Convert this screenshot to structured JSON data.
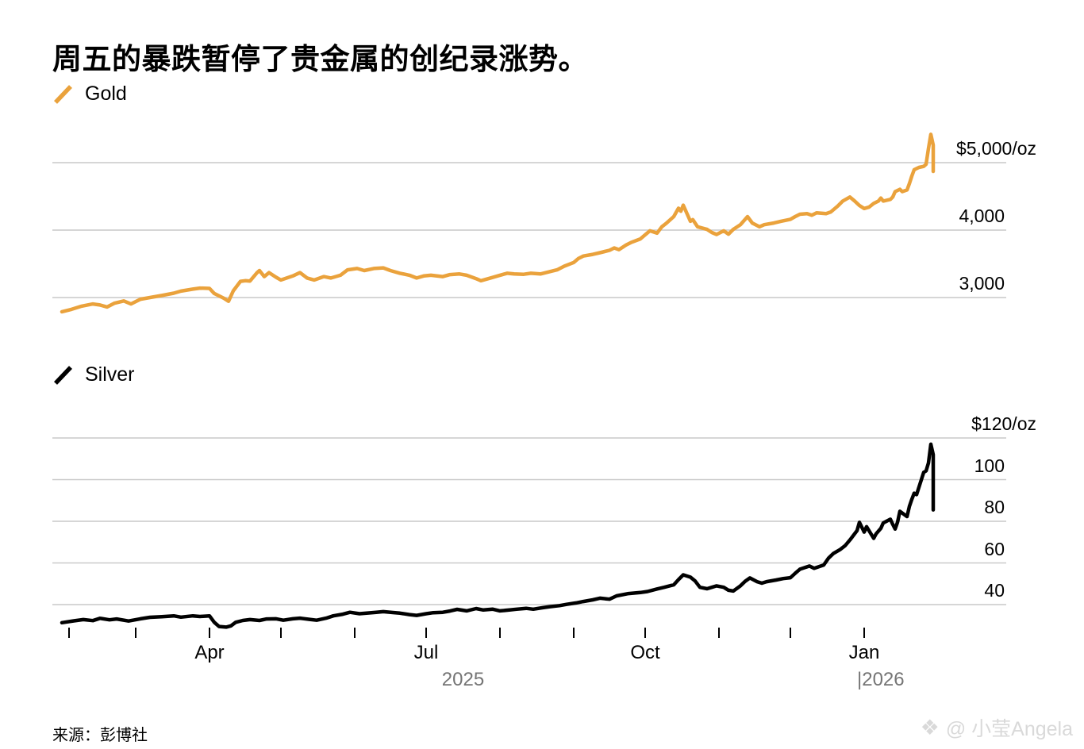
{
  "title": "周五的暴跌暂停了贵金属的创纪录涨势。",
  "source": "来源：彭博社",
  "watermark": {
    "logo": "❖",
    "text": "@ 小莹Angela"
  },
  "colors": {
    "gold": "#EAA23C",
    "silver": "#000000",
    "gridline": "#c9c9c9",
    "year_text": "#757575",
    "watermark_text": "#d9d9d9"
  },
  "x_axis": {
    "range": [
      "2025-01-29",
      "2026-01-30"
    ],
    "tick_dates": [
      "2025-02-01",
      "2025-03-01",
      "2025-04-01",
      "2025-05-01",
      "2025-06-01",
      "2025-07-01",
      "2025-08-01",
      "2025-09-01",
      "2025-10-01",
      "2025-11-01",
      "2025-12-01",
      "2026-01-01"
    ],
    "month_labels": [
      {
        "label": "Apr",
        "date": "2025-04-01"
      },
      {
        "label": "Jul",
        "date": "2025-07-01"
      },
      {
        "label": "Oct",
        "date": "2025-10-01"
      },
      {
        "label": "Jan",
        "date": "2026-01-01"
      }
    ],
    "year_labels": [
      {
        "label": "2025"
      },
      {
        "label": "|2026",
        "date": "2026-01-01"
      }
    ]
  },
  "chart_data": [
    {
      "type": "line",
      "name": "gold",
      "legend": "Gold",
      "color": "#EAA23C",
      "unit": "$/oz",
      "grid": true,
      "legend_position": "top-left",
      "y_axis": {
        "ticks": [
          {
            "label": "$5,000/oz",
            "value": 5000
          },
          {
            "label": "4,000",
            "value": 4000
          },
          {
            "label": "3,000",
            "value": 3000
          }
        ],
        "range": [
          2700,
          5500
        ]
      },
      "series": [
        [
          "2025-01-29",
          2790
        ],
        [
          "2025-02-02",
          2825
        ],
        [
          "2025-02-06",
          2870
        ],
        [
          "2025-02-11",
          2905
        ],
        [
          "2025-02-14",
          2890
        ],
        [
          "2025-02-17",
          2860
        ],
        [
          "2025-02-20",
          2915
        ],
        [
          "2025-02-24",
          2950
        ],
        [
          "2025-02-27",
          2905
        ],
        [
          "2025-03-03",
          2975
        ],
        [
          "2025-03-07",
          3000
        ],
        [
          "2025-03-12",
          3030
        ],
        [
          "2025-03-17",
          3065
        ],
        [
          "2025-03-20",
          3095
        ],
        [
          "2025-03-25",
          3125
        ],
        [
          "2025-03-28",
          3140
        ],
        [
          "2025-04-01",
          3135
        ],
        [
          "2025-04-03",
          3060
        ],
        [
          "2025-04-07",
          2990
        ],
        [
          "2025-04-09",
          2945
        ],
        [
          "2025-04-11",
          3100
        ],
        [
          "2025-04-14",
          3240
        ],
        [
          "2025-04-16",
          3250
        ],
        [
          "2025-04-18",
          3245
        ],
        [
          "2025-04-21",
          3370
        ],
        [
          "2025-04-22",
          3400
        ],
        [
          "2025-04-24",
          3310
        ],
        [
          "2025-04-26",
          3370
        ],
        [
          "2025-04-29",
          3300
        ],
        [
          "2025-05-01",
          3260
        ],
        [
          "2025-05-06",
          3320
        ],
        [
          "2025-05-09",
          3370
        ],
        [
          "2025-05-12",
          3290
        ],
        [
          "2025-05-15",
          3260
        ],
        [
          "2025-05-19",
          3310
        ],
        [
          "2025-05-22",
          3290
        ],
        [
          "2025-05-26",
          3330
        ],
        [
          "2025-05-29",
          3410
        ],
        [
          "2025-06-02",
          3430
        ],
        [
          "2025-06-05",
          3400
        ],
        [
          "2025-06-09",
          3430
        ],
        [
          "2025-06-13",
          3440
        ],
        [
          "2025-06-16",
          3400
        ],
        [
          "2025-06-20",
          3360
        ],
        [
          "2025-06-24",
          3330
        ],
        [
          "2025-06-27",
          3290
        ],
        [
          "2025-06-30",
          3320
        ],
        [
          "2025-07-03",
          3330
        ],
        [
          "2025-07-08",
          3310
        ],
        [
          "2025-07-11",
          3340
        ],
        [
          "2025-07-15",
          3350
        ],
        [
          "2025-07-18",
          3330
        ],
        [
          "2025-07-22",
          3280
        ],
        [
          "2025-07-24",
          3250
        ],
        [
          "2025-07-28",
          3290
        ],
        [
          "2025-07-31",
          3320
        ],
        [
          "2025-08-04",
          3360
        ],
        [
          "2025-08-07",
          3350
        ],
        [
          "2025-08-11",
          3345
        ],
        [
          "2025-08-14",
          3360
        ],
        [
          "2025-08-18",
          3350
        ],
        [
          "2025-08-21",
          3375
        ],
        [
          "2025-08-25",
          3410
        ],
        [
          "2025-08-28",
          3465
        ],
        [
          "2025-09-01",
          3520
        ],
        [
          "2025-09-03",
          3580
        ],
        [
          "2025-09-05",
          3615
        ],
        [
          "2025-09-09",
          3640
        ],
        [
          "2025-09-12",
          3665
        ],
        [
          "2025-09-16",
          3700
        ],
        [
          "2025-09-18",
          3735
        ],
        [
          "2025-09-20",
          3710
        ],
        [
          "2025-09-23",
          3780
        ],
        [
          "2025-09-25",
          3815
        ],
        [
          "2025-09-29",
          3870
        ],
        [
          "2025-10-01",
          3930
        ],
        [
          "2025-10-03",
          3990
        ],
        [
          "2025-10-06",
          3955
        ],
        [
          "2025-10-08",
          4050
        ],
        [
          "2025-10-10",
          4105
        ],
        [
          "2025-10-13",
          4200
        ],
        [
          "2025-10-15",
          4325
        ],
        [
          "2025-10-16",
          4280
        ],
        [
          "2025-10-17",
          4370
        ],
        [
          "2025-10-20",
          4130
        ],
        [
          "2025-10-21",
          4155
        ],
        [
          "2025-10-23",
          4050
        ],
        [
          "2025-10-27",
          4010
        ],
        [
          "2025-10-29",
          3965
        ],
        [
          "2025-10-31",
          3935
        ],
        [
          "2025-11-03",
          3990
        ],
        [
          "2025-11-05",
          3940
        ],
        [
          "2025-11-07",
          4010
        ],
        [
          "2025-11-10",
          4080
        ],
        [
          "2025-11-13",
          4200
        ],
        [
          "2025-11-15",
          4105
        ],
        [
          "2025-11-18",
          4050
        ],
        [
          "2025-11-20",
          4080
        ],
        [
          "2025-11-24",
          4105
        ],
        [
          "2025-11-27",
          4130
        ],
        [
          "2025-12-01",
          4160
        ],
        [
          "2025-12-03",
          4200
        ],
        [
          "2025-12-05",
          4235
        ],
        [
          "2025-12-08",
          4245
        ],
        [
          "2025-12-10",
          4220
        ],
        [
          "2025-12-12",
          4255
        ],
        [
          "2025-12-16",
          4245
        ],
        [
          "2025-12-18",
          4270
        ],
        [
          "2025-12-21",
          4360
        ],
        [
          "2025-12-23",
          4430
        ],
        [
          "2025-12-26",
          4490
        ],
        [
          "2025-12-28",
          4430
        ],
        [
          "2025-12-30",
          4365
        ],
        [
          "2026-01-01",
          4320
        ],
        [
          "2026-01-03",
          4340
        ],
        [
          "2026-01-05",
          4395
        ],
        [
          "2026-01-07",
          4430
        ],
        [
          "2026-01-08",
          4475
        ],
        [
          "2026-01-09",
          4430
        ],
        [
          "2026-01-12",
          4455
        ],
        [
          "2026-01-13",
          4490
        ],
        [
          "2026-01-14",
          4570
        ],
        [
          "2026-01-16",
          4605
        ],
        [
          "2026-01-17",
          4570
        ],
        [
          "2026-01-19",
          4595
        ],
        [
          "2026-01-20",
          4690
        ],
        [
          "2026-01-21",
          4800
        ],
        [
          "2026-01-22",
          4895
        ],
        [
          "2026-01-24",
          4930
        ],
        [
          "2026-01-26",
          4945
        ],
        [
          "2026-01-27",
          4975
        ],
        [
          "2026-01-28",
          5210
        ],
        [
          "2026-01-29",
          5420
        ],
        [
          "2026-01-30",
          5260
        ],
        [
          "2026-01-30",
          4870
        ]
      ]
    },
    {
      "type": "line",
      "name": "silver",
      "legend": "Silver",
      "color": "#000000",
      "unit": "$/oz",
      "grid": true,
      "legend_position": "top-left",
      "y_axis": {
        "ticks": [
          {
            "label": "$120/oz",
            "value": 120
          },
          {
            "label": "100",
            "value": 100
          },
          {
            "label": "80",
            "value": 80
          },
          {
            "label": "60",
            "value": 60
          },
          {
            "label": "40",
            "value": 40
          }
        ],
        "range": [
          28,
          122
        ]
      },
      "series": [
        [
          "2025-01-29",
          31.3
        ],
        [
          "2025-02-03",
          32.2
        ],
        [
          "2025-02-07",
          32.8
        ],
        [
          "2025-02-11",
          32.3
        ],
        [
          "2025-02-14",
          33.4
        ],
        [
          "2025-02-18",
          32.7
        ],
        [
          "2025-02-21",
          33.1
        ],
        [
          "2025-02-26",
          32.1
        ],
        [
          "2025-03-03",
          33.2
        ],
        [
          "2025-03-07",
          33.9
        ],
        [
          "2025-03-12",
          34.2
        ],
        [
          "2025-03-17",
          34.6
        ],
        [
          "2025-03-20",
          34.0
        ],
        [
          "2025-03-25",
          34.6
        ],
        [
          "2025-03-28",
          34.3
        ],
        [
          "2025-04-01",
          34.6
        ],
        [
          "2025-04-03",
          31.5
        ],
        [
          "2025-04-05",
          29.5
        ],
        [
          "2025-04-08",
          29.2
        ],
        [
          "2025-04-10",
          29.8
        ],
        [
          "2025-04-12",
          31.5
        ],
        [
          "2025-04-15",
          32.4
        ],
        [
          "2025-04-18",
          32.8
        ],
        [
          "2025-04-22",
          32.4
        ],
        [
          "2025-04-25",
          33.1
        ],
        [
          "2025-04-29",
          33.2
        ],
        [
          "2025-05-02",
          32.5
        ],
        [
          "2025-05-06",
          33.2
        ],
        [
          "2025-05-09",
          33.5
        ],
        [
          "2025-05-13",
          32.9
        ],
        [
          "2025-05-16",
          32.5
        ],
        [
          "2025-05-20",
          33.5
        ],
        [
          "2025-05-23",
          34.6
        ],
        [
          "2025-05-27",
          35.4
        ],
        [
          "2025-05-30",
          36.3
        ],
        [
          "2025-06-03",
          35.6
        ],
        [
          "2025-06-06",
          35.9
        ],
        [
          "2025-06-10",
          36.3
        ],
        [
          "2025-06-13",
          36.6
        ],
        [
          "2025-06-17",
          36.2
        ],
        [
          "2025-06-20",
          35.9
        ],
        [
          "2025-06-24",
          35.2
        ],
        [
          "2025-06-27",
          34.8
        ],
        [
          "2025-07-01",
          35.6
        ],
        [
          "2025-07-04",
          36.1
        ],
        [
          "2025-07-08",
          36.3
        ],
        [
          "2025-07-11",
          36.9
        ],
        [
          "2025-07-14",
          37.7
        ],
        [
          "2025-07-18",
          37.0
        ],
        [
          "2025-07-22",
          38.1
        ],
        [
          "2025-07-25",
          37.4
        ],
        [
          "2025-07-29",
          37.8
        ],
        [
          "2025-08-01",
          37.0
        ],
        [
          "2025-08-05",
          37.4
        ],
        [
          "2025-08-08",
          37.8
        ],
        [
          "2025-08-12",
          38.2
        ],
        [
          "2025-08-15",
          37.8
        ],
        [
          "2025-08-19",
          38.5
        ],
        [
          "2025-08-22",
          39.0
        ],
        [
          "2025-08-26",
          39.5
        ],
        [
          "2025-08-29",
          40.1
        ],
        [
          "2025-09-02",
          40.8
        ],
        [
          "2025-09-05",
          41.5
        ],
        [
          "2025-09-09",
          42.3
        ],
        [
          "2025-09-12",
          43.1
        ],
        [
          "2025-09-16",
          42.6
        ],
        [
          "2025-09-19",
          44.2
        ],
        [
          "2025-09-24",
          45.3
        ],
        [
          "2025-09-29",
          45.8
        ],
        [
          "2025-10-02",
          46.3
        ],
        [
          "2025-10-06",
          47.5
        ],
        [
          "2025-10-09",
          48.3
        ],
        [
          "2025-10-13",
          49.5
        ],
        [
          "2025-10-15",
          52.0
        ],
        [
          "2025-10-17",
          54.3
        ],
        [
          "2025-10-20",
          53.2
        ],
        [
          "2025-10-22",
          51.3
        ],
        [
          "2025-10-24",
          48.3
        ],
        [
          "2025-10-27",
          47.6
        ],
        [
          "2025-10-29",
          48.3
        ],
        [
          "2025-10-31",
          49.0
        ],
        [
          "2025-11-03",
          48.3
        ],
        [
          "2025-11-05",
          46.9
        ],
        [
          "2025-11-07",
          46.5
        ],
        [
          "2025-11-10",
          49.0
        ],
        [
          "2025-11-12",
          51.2
        ],
        [
          "2025-11-14",
          52.8
        ],
        [
          "2025-11-17",
          51.0
        ],
        [
          "2025-11-19",
          50.3
        ],
        [
          "2025-11-21",
          51.0
        ],
        [
          "2025-11-25",
          51.8
        ],
        [
          "2025-11-28",
          52.5
        ],
        [
          "2025-12-01",
          52.9
        ],
        [
          "2025-12-03",
          55.0
        ],
        [
          "2025-12-05",
          57.0
        ],
        [
          "2025-12-09",
          58.5
        ],
        [
          "2025-12-11",
          57.4
        ],
        [
          "2025-12-15",
          59.0
        ],
        [
          "2025-12-17",
          62.3
        ],
        [
          "2025-12-19",
          64.5
        ],
        [
          "2025-12-22",
          66.5
        ],
        [
          "2025-12-24",
          68.3
        ],
        [
          "2025-12-26",
          71.0
        ],
        [
          "2025-12-29",
          75.5
        ],
        [
          "2025-12-30",
          79.5
        ],
        [
          "2026-01-01",
          74.8
        ],
        [
          "2026-01-02",
          77.4
        ],
        [
          "2026-01-05",
          71.8
        ],
        [
          "2026-01-06",
          74.0
        ],
        [
          "2026-01-08",
          76.6
        ],
        [
          "2026-01-09",
          79.2
        ],
        [
          "2026-01-12",
          81.0
        ],
        [
          "2026-01-13",
          78.5
        ],
        [
          "2026-01-14",
          76.3
        ],
        [
          "2026-01-15",
          79.5
        ],
        [
          "2026-01-16",
          84.8
        ],
        [
          "2026-01-19",
          82.3
        ],
        [
          "2026-01-20",
          87.2
        ],
        [
          "2026-01-21",
          90.5
        ],
        [
          "2026-01-22",
          93.5
        ],
        [
          "2026-01-23",
          92.8
        ],
        [
          "2026-01-26",
          103.5
        ],
        [
          "2026-01-27",
          104.2
        ],
        [
          "2026-01-28",
          108.0
        ],
        [
          "2026-01-29",
          117.0
        ],
        [
          "2026-01-30",
          112.0
        ],
        [
          "2026-01-30",
          85.5
        ]
      ]
    }
  ]
}
